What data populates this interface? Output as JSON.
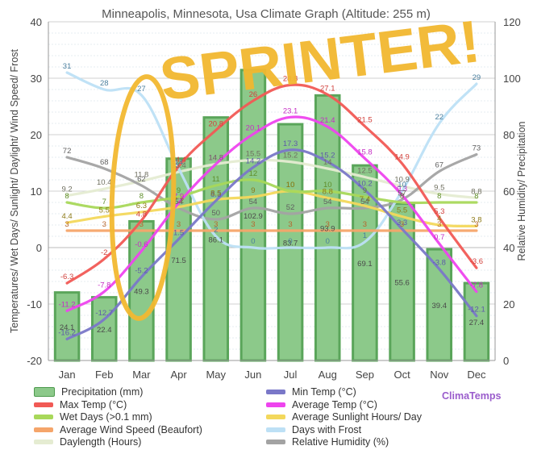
{
  "chart_data": {
    "type": "bar+line",
    "title": "Minneapolis, Minnesota, Usa Climate Graph (Altitude: 255 m)",
    "ylabel": "Temperatures/ Wet Days/ Sunlight/ Daylight/ Wind Speed/ Frost",
    "y2label": "Relative Humidity/ Precipitation",
    "ylim": [
      -20,
      40
    ],
    "y2lim": [
      0,
      120
    ],
    "yticks": [
      "-20",
      "-10",
      "0",
      "10",
      "20",
      "30",
      "40"
    ],
    "y2ticks": [
      "0",
      "20",
      "40",
      "60",
      "80",
      "100",
      "120"
    ],
    "categories": [
      "Jan",
      "Feb",
      "Mar",
      "Apr",
      "May",
      "Jun",
      "Jul",
      "Aug",
      "Sep",
      "Oct",
      "Nov",
      "Dec"
    ],
    "grid": true,
    "legend_position": "bottom",
    "series": [
      {
        "name": "Precipitation (mm)",
        "kind": "bar",
        "axis": "right",
        "color": "#8cc98a",
        "values": [
          24.1,
          22.4,
          49.3,
          71.5,
          86.1,
          102.9,
          83.7,
          93.9,
          69.1,
          55.6,
          39.4,
          27.4
        ]
      },
      {
        "name": "Min Temp (°C)",
        "kind": "line",
        "axis": "left",
        "color": "#7a78c8",
        "values": [
          -16.2,
          -12.7,
          -5.2,
          1.5,
          8.3,
          14.2,
          17.3,
          15.2,
          10.2,
          3.3,
          -3.8,
          -12.1
        ]
      },
      {
        "name": "Max Temp (°C)",
        "kind": "line",
        "axis": "left",
        "color": "#f15a55",
        "values": [
          -6.3,
          -2,
          4.8,
          14.4,
          20.8,
          26,
          28.8,
          27.1,
          21.5,
          14.9,
          5.3,
          -3.6
        ]
      },
      {
        "name": "Average Temp (°C)",
        "kind": "line",
        "axis": "left",
        "color": "#ee44ee",
        "values": [
          -11.2,
          -7.8,
          -0.6,
          7.9,
          14.8,
          20.1,
          23.1,
          21.4,
          15.8,
          9.3,
          0.7,
          -7.8
        ]
      },
      {
        "name": "Wet Days (>0.1 mm)",
        "kind": "line",
        "axis": "left",
        "color": "#a8d85a",
        "values": [
          8,
          7,
          8,
          9,
          11,
          12,
          10,
          10,
          9,
          8,
          8,
          8
        ]
      },
      {
        "name": "Average Sunlight Hours/ Day",
        "kind": "line",
        "axis": "left",
        "color": "#f3d85c",
        "values": [
          4.4,
          5.5,
          6.3,
          7.2,
          8.5,
          9.0,
          10.0,
          8.8,
          7.4,
          5.5,
          4.0,
          3.8
        ]
      },
      {
        "name": "Average Wind Speed (Beaufort)",
        "kind": "line",
        "axis": "left",
        "color": "#f5a56a",
        "values": [
          3,
          3,
          3,
          3,
          3,
          3,
          3,
          3,
          3,
          3,
          3,
          3
        ]
      },
      {
        "name": "Days with Frost",
        "kind": "line",
        "axis": "left",
        "color": "#bde0f5",
        "values": [
          31,
          28,
          27,
          14,
          2,
          0,
          0,
          0,
          1,
          10,
          22,
          29
        ]
      },
      {
        "name": "Daylength (Hours)",
        "kind": "line",
        "axis": "left",
        "color": "#e5ecd2",
        "values": [
          9.2,
          10.4,
          11.8,
          13.4,
          14.8,
          15.5,
          15.2,
          14.0,
          12.5,
          10.9,
          9.5,
          8.8
        ]
      },
      {
        "name": "Relative Humidity (%)",
        "kind": "line",
        "axis": "right",
        "color": "#a3a3a3",
        "values": [
          72,
          68,
          62,
          54,
          50,
          54,
          52,
          54,
          54,
          57,
          67,
          73
        ]
      }
    ]
  },
  "brand": "ClimaTemps",
  "annotation": {
    "text": "SPRINTER!",
    "color": "#f2b830"
  }
}
